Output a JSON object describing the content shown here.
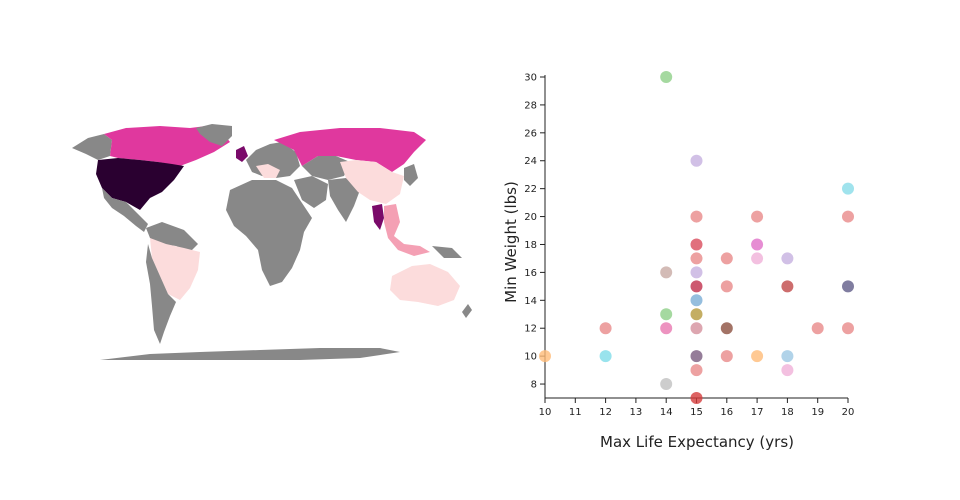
{
  "map": {
    "colors": {
      "base": "#888888",
      "light": "#fcdcdc",
      "mid": "#f4a0b4",
      "magenta": "#e0389e",
      "dark": "#7a0a6a",
      "darkest": "#2a0030"
    },
    "regions": [
      {
        "name": "usa",
        "level": "darkest"
      },
      {
        "name": "canada",
        "level": "magenta"
      },
      {
        "name": "russia",
        "level": "magenta"
      },
      {
        "name": "uk",
        "level": "dark"
      },
      {
        "name": "thailand",
        "level": "dark"
      },
      {
        "name": "china",
        "level": "light"
      },
      {
        "name": "brazil",
        "level": "light"
      },
      {
        "name": "australia",
        "level": "light"
      },
      {
        "name": "southeast-asia",
        "level": "mid"
      },
      {
        "name": "europe",
        "level": "light"
      }
    ]
  },
  "chart_data": {
    "type": "scatter",
    "title": "",
    "xlabel": "Max Life Expectancy (yrs)",
    "ylabel": "Min Weight (lbs)",
    "xlim": [
      10,
      20
    ],
    "ylim": [
      7,
      30
    ],
    "xticks": [
      10,
      11,
      12,
      13,
      14,
      15,
      16,
      17,
      18,
      19,
      20
    ],
    "yticks": [
      8,
      10,
      12,
      14,
      16,
      18,
      20,
      22,
      24,
      26,
      28,
      30
    ],
    "grid": false,
    "points": [
      {
        "x": 10,
        "y": 10,
        "color": "#ffbb78"
      },
      {
        "x": 12,
        "y": 12,
        "color": "#e88a8a"
      },
      {
        "x": 12,
        "y": 10,
        "color": "#7fdce8"
      },
      {
        "x": 14,
        "y": 30,
        "color": "#8fcf88"
      },
      {
        "x": 14,
        "y": 16,
        "color": "#c8aaa4"
      },
      {
        "x": 14,
        "y": 13,
        "color": "#8fcf88"
      },
      {
        "x": 14,
        "y": 12,
        "color": "#e878b0"
      },
      {
        "x": 14,
        "y": 8,
        "color": "#c0c0c0"
      },
      {
        "x": 15,
        "y": 24,
        "color": "#c5b0e0"
      },
      {
        "x": 15,
        "y": 20,
        "color": "#e88a8a"
      },
      {
        "x": 15,
        "y": 18,
        "color": "#d94c5c"
      },
      {
        "x": 15,
        "y": 17,
        "color": "#e88a8a"
      },
      {
        "x": 15,
        "y": 16,
        "color": "#c5b0e0"
      },
      {
        "x": 15,
        "y": 15,
        "color": "#c0304c"
      },
      {
        "x": 15,
        "y": 14,
        "color": "#7aaed6"
      },
      {
        "x": 15,
        "y": 13,
        "color": "#b59a3c"
      },
      {
        "x": 15,
        "y": 12,
        "color": "#d4909c"
      },
      {
        "x": 15,
        "y": 10,
        "color": "#7a5c80"
      },
      {
        "x": 15,
        "y": 9,
        "color": "#e88a8a"
      },
      {
        "x": 15,
        "y": 7,
        "color": "#d43c3c"
      },
      {
        "x": 16,
        "y": 17,
        "color": "#e88a8a"
      },
      {
        "x": 16,
        "y": 15,
        "color": "#e88a8a"
      },
      {
        "x": 16,
        "y": 12,
        "color": "#8c5040"
      },
      {
        "x": 16,
        "y": 10,
        "color": "#e88a8a"
      },
      {
        "x": 17,
        "y": 20,
        "color": "#e88a8a"
      },
      {
        "x": 17,
        "y": 18,
        "color": "#e070c8"
      },
      {
        "x": 17,
        "y": 17,
        "color": "#f0b0d8"
      },
      {
        "x": 17,
        "y": 10,
        "color": "#ffbb78"
      },
      {
        "x": 18,
        "y": 17,
        "color": "#c5b0e0"
      },
      {
        "x": 18,
        "y": 15,
        "color": "#c04848"
      },
      {
        "x": 18,
        "y": 10,
        "color": "#9ec8e4"
      },
      {
        "x": 18,
        "y": 9,
        "color": "#f0b0d8"
      },
      {
        "x": 19,
        "y": 12,
        "color": "#e88a8a"
      },
      {
        "x": 20,
        "y": 22,
        "color": "#88dce8"
      },
      {
        "x": 20,
        "y": 20,
        "color": "#e88a8a"
      },
      {
        "x": 20,
        "y": 15,
        "color": "#605c88"
      },
      {
        "x": 20,
        "y": 12,
        "color": "#e88a8a"
      }
    ]
  }
}
